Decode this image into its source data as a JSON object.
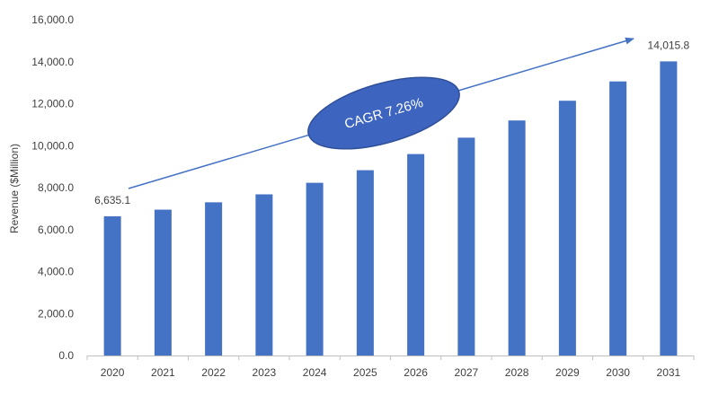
{
  "chart_data": {
    "type": "bar",
    "title": "",
    "xlabel": "",
    "ylabel": "Revenue ($Million)",
    "ylim": [
      0,
      16000
    ],
    "yticks": [
      "0.0",
      "2,000.0",
      "4,000.0",
      "6,000.0",
      "8,000.0",
      "10,000.0",
      "12,000.0",
      "14,000.0",
      "16,000.0"
    ],
    "categories": [
      "2020",
      "2021",
      "2022",
      "2023",
      "2024",
      "2025",
      "2026",
      "2027",
      "2028",
      "2029",
      "2030",
      "2031"
    ],
    "values": [
      6635.1,
      6950,
      7300,
      7680,
      8230,
      8830,
      9600,
      10380,
      11200,
      12140,
      13060,
      14015.8
    ],
    "data_labels": [
      {
        "category": "2020",
        "text": "6,635.1"
      },
      {
        "category": "2031",
        "text": "14,015.8"
      }
    ],
    "annotation": {
      "text": "CAGR 7.26%"
    },
    "grid": false,
    "legend": "none",
    "colors": {
      "bar": "#4472C4",
      "ellipse_fill": "#3D65C0",
      "ellipse_stroke": "#2F4F99",
      "arrow": "#4472C4",
      "axis": "#BFBFBF",
      "text": "#404040"
    }
  }
}
